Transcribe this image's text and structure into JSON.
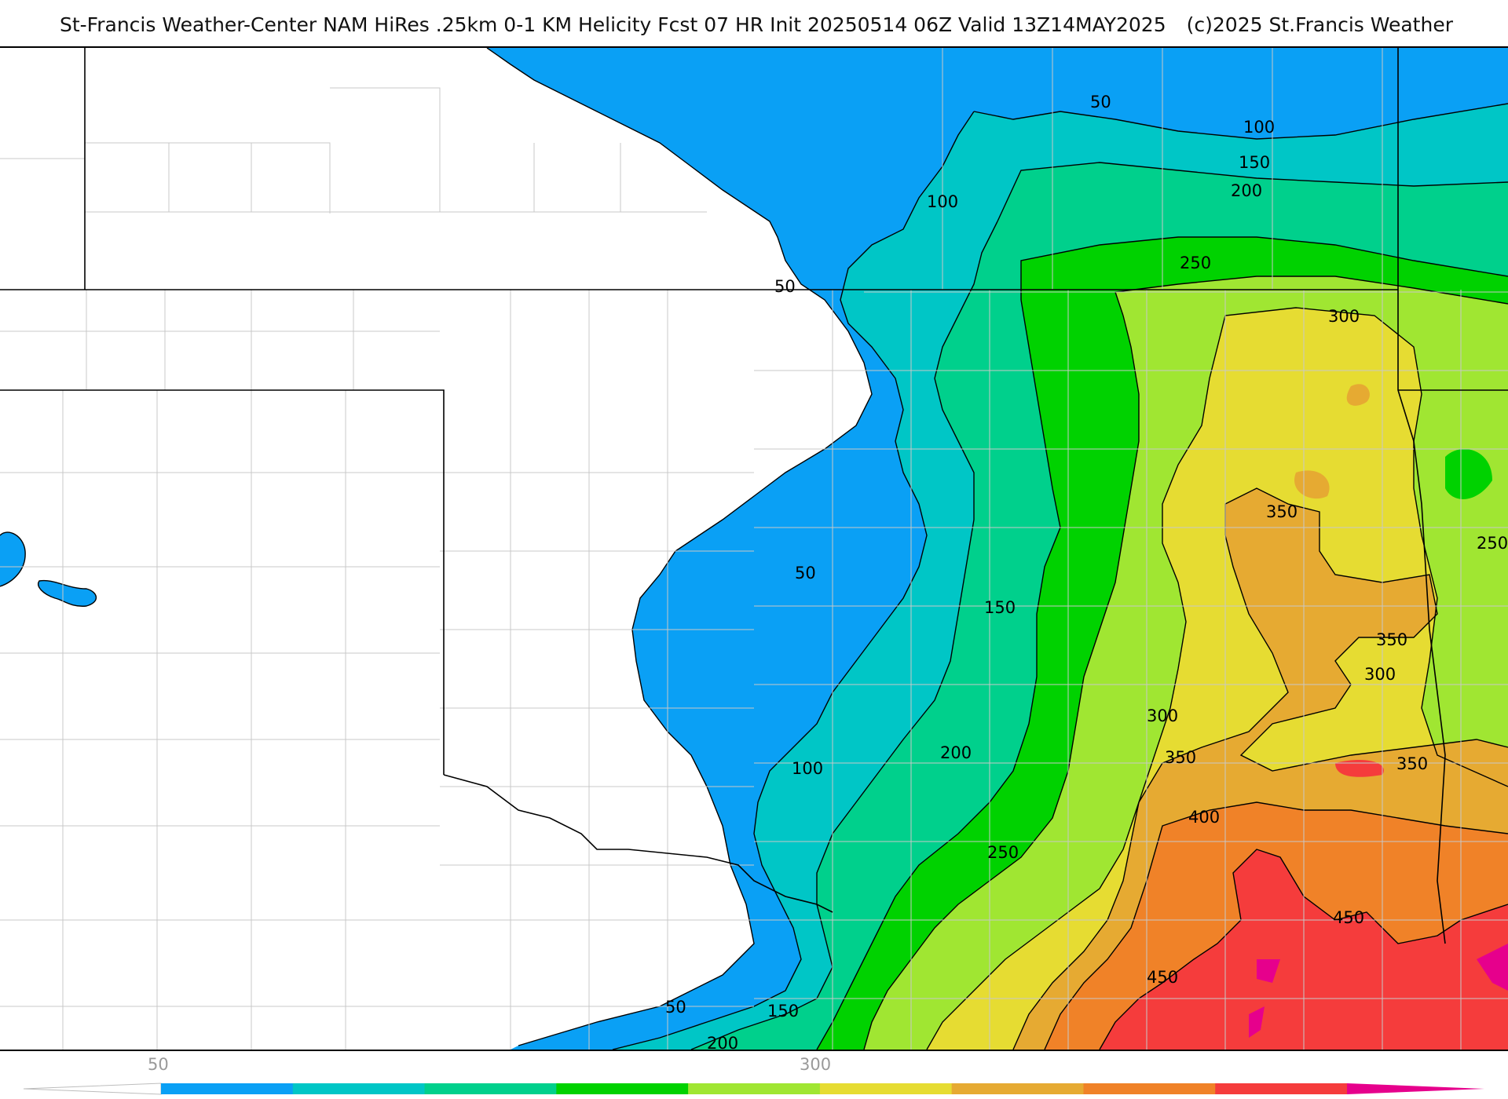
{
  "title": {
    "main": "St-Francis Weather-Center NAM HiRes .25km 0-1 KM Helicity Fcst 07 HR Init 20250514 06Z  Valid 13Z14MAY2025",
    "credit": "(c)2025 St.Francis Weather"
  },
  "map": {
    "field": "0-1 KM Helicity",
    "contour_labels": [
      "50",
      "100",
      "50",
      "100",
      "150",
      "200",
      "250",
      "300",
      "100",
      "50",
      "150",
      "300",
      "350",
      "350",
      "250",
      "300",
      "350",
      "350",
      "200",
      "250",
      "400",
      "100",
      "450",
      "450",
      "50",
      "150",
      "200"
    ],
    "colors": {
      "background": "#ffffff",
      "state_border": "#000000",
      "county_border": "#c8c8c8",
      "contour_line": "#000000"
    }
  },
  "colorbar": {
    "tick_labels": [
      "50",
      "300"
    ],
    "levels": [
      50,
      100,
      150,
      200,
      250,
      300,
      350,
      400,
      450,
      500
    ],
    "colors": [
      "#0aa0f5",
      "#00c6c6",
      "#00d08c",
      "#00d200",
      "#a0e632",
      "#e6dc32",
      "#e6aa32",
      "#f08228",
      "#f53c3c",
      "#e6008c"
    ],
    "under_color": "#ffffff",
    "over_color": "#e6008c"
  }
}
